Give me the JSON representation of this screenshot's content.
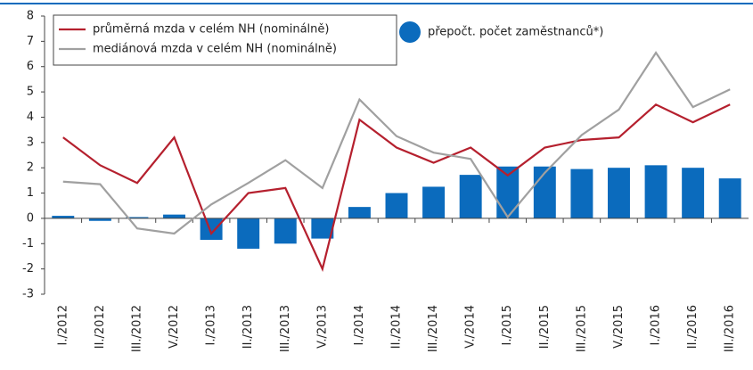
{
  "chart_data": {
    "type": "bar_line",
    "categories": [
      "I./2012",
      "II./2012",
      "III./2012",
      "V./2012",
      "I./2013",
      "II./2013",
      "III./2013",
      "V./2013",
      "I./2014",
      "II./2014",
      "III./2014",
      "V./2014",
      "I./2015",
      "II./2015",
      "III./2015",
      "V./2015",
      "I./2016",
      "II./2016",
      "III./2016"
    ],
    "series": [
      {
        "name": "průměrná mzda v celém NH (nominálně)",
        "type": "line",
        "color": "#b5202e",
        "values": [
          3.2,
          2.1,
          1.4,
          3.2,
          -0.6,
          1.0,
          1.2,
          -2.0,
          3.9,
          2.8,
          2.2,
          2.8,
          1.7,
          2.8,
          3.1,
          3.2,
          4.5,
          3.8,
          4.5
        ]
      },
      {
        "name": "mediánová mzda v celém NH (nominálně)",
        "type": "line",
        "color": "#a0a0a0",
        "values": [
          1.45,
          1.35,
          -0.4,
          -0.6,
          0.55,
          1.4,
          2.3,
          1.2,
          4.7,
          3.25,
          2.6,
          2.35,
          0.05,
          1.8,
          3.3,
          4.3,
          6.55,
          4.4,
          5.1
        ]
      },
      {
        "name": "přepočt. počet zaměstnanců*)",
        "type": "bar",
        "color": "#0b6bbd",
        "values": [
          0.1,
          -0.1,
          0.05,
          0.15,
          -0.85,
          -1.2,
          -1.0,
          -0.8,
          0.45,
          1.0,
          1.25,
          1.72,
          2.05,
          2.05,
          1.95,
          2.0,
          2.1,
          2.0,
          1.58
        ]
      }
    ],
    "ylim": [
      -3,
      8
    ],
    "yticks": [
      -3,
      -2,
      -1,
      0,
      1,
      2,
      3,
      4,
      5,
      6,
      7,
      8
    ]
  }
}
